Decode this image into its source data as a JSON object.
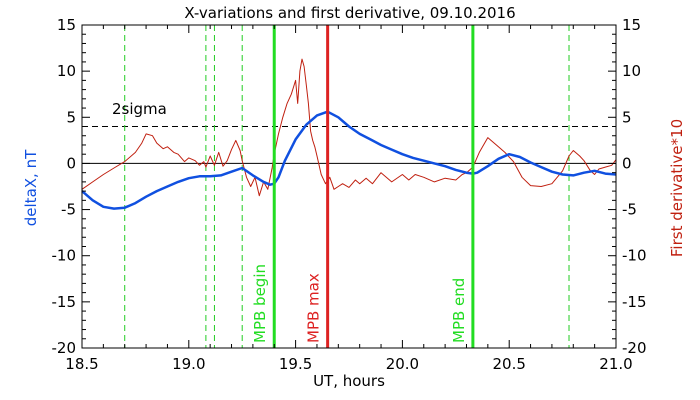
{
  "chart_data": {
    "type": "line",
    "title": "X-variations and first derivative, 09.10.2016",
    "xlabel": "UT, hours",
    "ylabel_left": "deltaX, nT",
    "ylabel_right": "First derivative*10",
    "xlim": [
      18.5,
      21.0
    ],
    "ylim": [
      -20,
      15
    ],
    "xticks": [
      "18.5",
      "19.0",
      "19.5",
      "20.0",
      "20.5",
      "21.0"
    ],
    "yticks": [
      "15",
      "10",
      "5",
      "0",
      "-5",
      "-10",
      "-15",
      "-20"
    ],
    "reference_lines": {
      "zero": 0,
      "two_sigma": 4,
      "two_sigma_label": "2sigma"
    },
    "dashed_verticals": [
      18.7,
      19.08,
      19.12,
      19.25,
      20.78,
      21.0
    ],
    "markers": [
      {
        "label": "MPB begin",
        "x": 19.4,
        "color": "#22dd22"
      },
      {
        "label": "MPB max",
        "x": 19.65,
        "color": "#dd2222"
      },
      {
        "label": "MPB end",
        "x": 20.33,
        "color": "#22dd22"
      }
    ],
    "colors": {
      "deltaX": "#1050e0",
      "derivative": "#c02010",
      "dashed_green": "#22cc22",
      "text": "#000000"
    },
    "series": [
      {
        "name": "deltaX",
        "axis": "left",
        "x": [
          18.5,
          18.55,
          18.6,
          18.65,
          18.7,
          18.75,
          18.8,
          18.85,
          18.9,
          18.95,
          19.0,
          19.05,
          19.1,
          19.15,
          19.2,
          19.25,
          19.3,
          19.35,
          19.38,
          19.4,
          19.42,
          19.45,
          19.5,
          19.55,
          19.6,
          19.65,
          19.7,
          19.75,
          19.8,
          19.85,
          19.9,
          19.95,
          20.0,
          20.05,
          20.1,
          20.15,
          20.2,
          20.25,
          20.3,
          20.33,
          20.35,
          20.4,
          20.45,
          20.5,
          20.55,
          20.6,
          20.65,
          20.7,
          20.75,
          20.8,
          20.85,
          20.9,
          20.95,
          21.0
        ],
        "y": [
          -3.0,
          -4.0,
          -4.7,
          -4.9,
          -4.8,
          -4.3,
          -3.6,
          -3.0,
          -2.5,
          -2.0,
          -1.6,
          -1.4,
          -1.4,
          -1.3,
          -0.9,
          -0.5,
          -1.3,
          -2.0,
          -2.3,
          -2.2,
          -1.5,
          0.3,
          2.6,
          4.2,
          5.2,
          5.6,
          5.0,
          4.0,
          3.2,
          2.6,
          2.0,
          1.5,
          1.0,
          0.6,
          0.3,
          0.0,
          -0.3,
          -0.7,
          -1.0,
          -1.1,
          -1.0,
          -0.3,
          0.5,
          1.0,
          0.7,
          0.1,
          -0.4,
          -0.9,
          -1.2,
          -1.3,
          -1.0,
          -0.8,
          -1.1,
          -1.2
        ]
      },
      {
        "name": "First derivative*10",
        "axis": "right",
        "x": [
          18.5,
          18.55,
          18.6,
          18.65,
          18.7,
          18.75,
          18.78,
          18.8,
          18.83,
          18.85,
          18.88,
          18.9,
          18.93,
          18.95,
          18.98,
          19.0,
          19.03,
          19.05,
          19.07,
          19.08,
          19.1,
          19.12,
          19.14,
          19.16,
          19.18,
          19.2,
          19.22,
          19.24,
          19.25,
          19.27,
          19.29,
          19.31,
          19.33,
          19.35,
          19.37,
          19.39,
          19.4,
          19.42,
          19.44,
          19.46,
          19.48,
          19.5,
          19.51,
          19.52,
          19.53,
          19.54,
          19.55,
          19.56,
          19.57,
          19.58,
          19.59,
          19.6,
          19.62,
          19.64,
          19.66,
          19.68,
          19.7,
          19.72,
          19.75,
          19.78,
          19.8,
          19.83,
          19.86,
          19.9,
          19.95,
          20.0,
          20.03,
          20.06,
          20.1,
          20.15,
          20.2,
          20.25,
          20.28,
          20.3,
          20.33,
          20.36,
          20.4,
          20.44,
          20.48,
          20.52,
          20.56,
          20.6,
          20.65,
          20.7,
          20.75,
          20.78,
          20.8,
          20.83,
          20.85,
          20.88,
          20.9,
          20.92,
          20.95,
          20.98,
          21.0
        ],
        "y": [
          -2.8,
          -2.0,
          -1.2,
          -0.5,
          0.2,
          1.2,
          2.2,
          3.2,
          3.0,
          2.2,
          1.6,
          1.8,
          1.2,
          1.0,
          0.2,
          0.6,
          0.3,
          -0.2,
          0.2,
          -0.4,
          0.8,
          -0.2,
          1.2,
          -0.3,
          0.3,
          1.5,
          2.5,
          1.4,
          0.3,
          -1.5,
          -2.5,
          -1.5,
          -3.5,
          -2.0,
          -2.8,
          -0.5,
          1.0,
          3.2,
          5.0,
          6.5,
          7.5,
          9.0,
          6.5,
          10.0,
          11.3,
          10.5,
          8.5,
          6.5,
          3.5,
          2.5,
          1.8,
          0.8,
          -1.2,
          -2.2,
          -1.5,
          -2.8,
          -2.5,
          -2.2,
          -2.6,
          -1.8,
          -2.2,
          -1.6,
          -2.2,
          -1.0,
          -2.0,
          -1.2,
          -1.8,
          -1.2,
          -1.5,
          -2.0,
          -1.6,
          -1.8,
          -1.2,
          -1.0,
          -0.4,
          1.2,
          2.8,
          2.0,
          1.2,
          0.2,
          -1.5,
          -2.4,
          -2.5,
          -2.2,
          -0.8,
          0.8,
          1.4,
          0.8,
          0.3,
          -0.8,
          -1.2,
          -0.6,
          -0.4,
          -0.2,
          0.4
        ]
      }
    ]
  }
}
